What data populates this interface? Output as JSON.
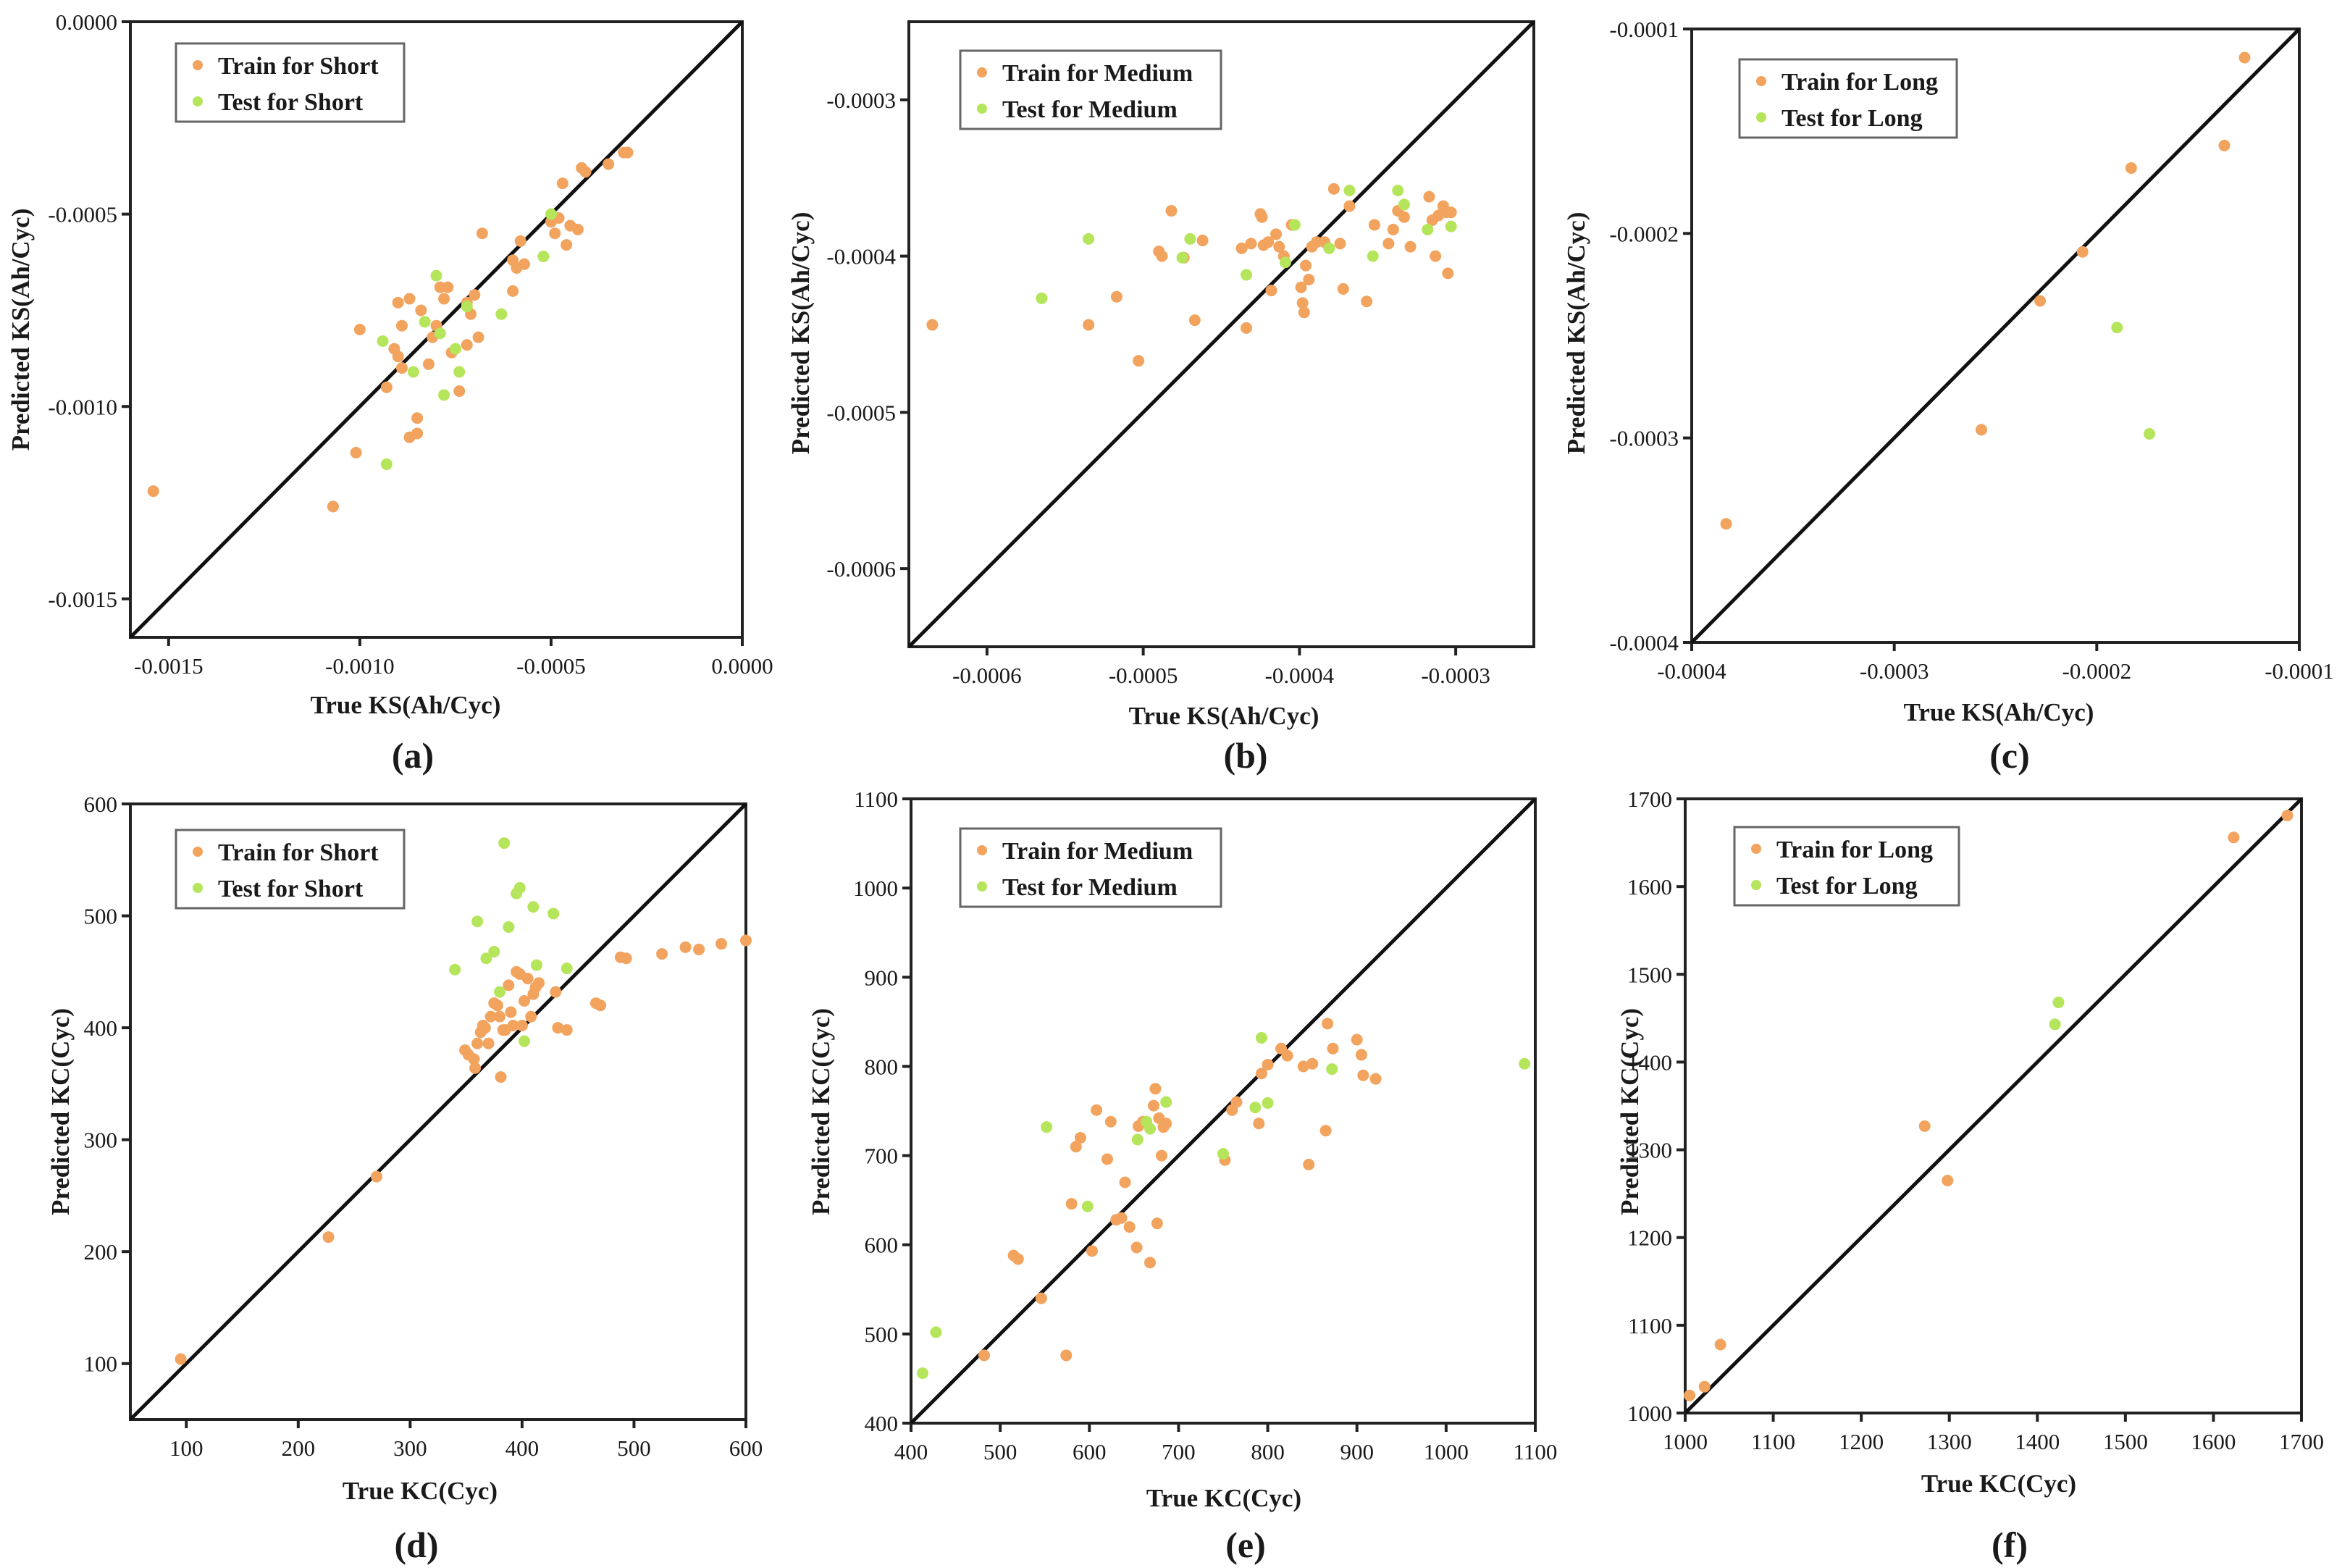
{
  "colors": {
    "train": "#f2a35e",
    "test": "#b5e55a",
    "axis": "#222222"
  },
  "chart_data": [
    {
      "id": "a",
      "type": "scatter",
      "panel_label": "(a)",
      "xlabel": "True KS(Ah/Cyc)",
      "ylabel": "Predicted KS(Ah/Cyc)",
      "xlim": [
        -0.0016,
        0.0
      ],
      "ylim": [
        -0.0016,
        0.0
      ],
      "xticks": [
        -0.0015,
        -0.001,
        -0.0005,
        0.0
      ],
      "xtick_labels": [
        "-0.0015",
        "-0.0010",
        "-0.0005",
        "0.0000"
      ],
      "yticks": [
        -0.0015,
        -0.001,
        -0.0005,
        0.0
      ],
      "ytick_labels": [
        "-0.0015",
        "-0.0010",
        "-0.0005",
        "0.0000"
      ],
      "legend": [
        "Train for Short",
        "Test for Short"
      ],
      "series": [
        {
          "name": "Train for Short",
          "color": "#f2a35e",
          "x": [
            -0.00154,
            -0.00107,
            -0.00101,
            -0.001,
            -0.00093,
            -0.00091,
            -0.0009,
            -0.0009,
            -0.00089,
            -0.00089,
            -0.00087,
            -0.00087,
            -0.00085,
            -0.00085,
            -0.00084,
            -0.00082,
            -0.00081,
            -0.0008,
            -0.00079,
            -0.00078,
            -0.00077,
            -0.00076,
            -0.00074,
            -0.00072,
            -0.00072,
            -0.00071,
            -0.0007,
            -0.00069,
            -0.00068,
            -0.0006,
            -0.0006,
            -0.00059,
            -0.00058,
            -0.00057,
            -0.0005,
            -0.00049,
            -0.00048,
            -0.00047,
            -0.00046,
            -0.00045,
            -0.00043,
            -0.00042,
            -0.00041,
            -0.00035,
            -0.00031,
            -0.0003
          ],
          "y": [
            -0.00122,
            -0.00126,
            -0.00112,
            -0.0008,
            -0.00095,
            -0.00085,
            -0.00087,
            -0.00073,
            -0.0009,
            -0.00079,
            -0.00072,
            -0.00108,
            -0.00107,
            -0.00103,
            -0.00075,
            -0.00089,
            -0.00082,
            -0.00079,
            -0.00069,
            -0.00072,
            -0.00069,
            -0.00086,
            -0.00096,
            -0.00084,
            -0.00073,
            -0.00076,
            -0.00071,
            -0.00082,
            -0.00055,
            -0.0007,
            -0.00062,
            -0.00064,
            -0.00057,
            -0.00063,
            -0.00052,
            -0.00055,
            -0.00051,
            -0.00042,
            -0.00058,
            -0.00053,
            -0.00054,
            -0.00038,
            -0.00039,
            -0.00037,
            -0.00034,
            -0.00034
          ]
        },
        {
          "name": "Test for Short",
          "color": "#b5e55a",
          "x": [
            -0.00094,
            -0.00093,
            -0.00086,
            -0.00083,
            -0.0008,
            -0.00079,
            -0.00078,
            -0.00075,
            -0.00074,
            -0.00072,
            -0.00063,
            -0.00052,
            -0.0005
          ],
          "y": [
            -0.00083,
            -0.00115,
            -0.00091,
            -0.00078,
            -0.00066,
            -0.00081,
            -0.00097,
            -0.00085,
            -0.00091,
            -0.00074,
            -0.00076,
            -0.00061,
            -0.0005
          ]
        }
      ]
    },
    {
      "id": "b",
      "type": "scatter",
      "panel_label": "(b)",
      "xlabel": "True KS(Ah/Cyc)",
      "ylabel": "Predicted KS(Ah/Cyc)",
      "xlim": [
        -0.00065,
        -0.00025
      ],
      "ylim": [
        -0.00065,
        -0.00025
      ],
      "xticks": [
        -0.0006,
        -0.0005,
        -0.0004,
        -0.0003
      ],
      "xtick_labels": [
        "-0.0006",
        "-0.0005",
        "-0.0004",
        "-0.0003"
      ],
      "yticks": [
        -0.0006,
        -0.0005,
        -0.0004,
        -0.0003
      ],
      "ytick_labels": [
        "-0.0006",
        "-0.0005",
        "-0.0004",
        "-0.0003"
      ],
      "legend": [
        "Train for Medium",
        "Test for Medium"
      ],
      "series": [
        {
          "name": "Train for Medium",
          "color": "#f2a35e",
          "x": [
            -0.000635,
            -0.000535,
            -0.000517,
            -0.000503,
            -0.00049,
            -0.000488,
            -0.000482,
            -0.000474,
            -0.000467,
            -0.000462,
            -0.000437,
            -0.000434,
            -0.000431,
            -0.000425,
            -0.000424,
            -0.000423,
            -0.00042,
            -0.000418,
            -0.000415,
            -0.000413,
            -0.00041,
            -0.000405,
            -0.000399,
            -0.000398,
            -0.000397,
            -0.000396,
            -0.000394,
            -0.000392,
            -0.000389,
            -0.000384,
            -0.000378,
            -0.000374,
            -0.000372,
            -0.000368,
            -0.000357,
            -0.000352,
            -0.000343,
            -0.00034,
            -0.000337,
            -0.000333,
            -0.000329,
            -0.000317,
            -0.000315,
            -0.000313,
            -0.000311,
            -0.000308,
            -0.000306,
            -0.000305,
            -0.000303
          ],
          "y": [
            -0.000444,
            -0.000444,
            -0.000426,
            -0.000467,
            -0.000397,
            -0.0004,
            -0.000371,
            -0.000401,
            -0.000441,
            -0.00039,
            -0.000395,
            -0.000446,
            -0.000392,
            -0.000373,
            -0.000375,
            -0.000393,
            -0.000391,
            -0.000422,
            -0.000386,
            -0.000394,
            -0.0004,
            -0.00038,
            -0.00042,
            -0.00043,
            -0.000436,
            -0.000406,
            -0.000415,
            -0.000394,
            -0.000391,
            -0.000391,
            -0.000357,
            -0.000392,
            -0.000421,
            -0.000368,
            -0.000429,
            -0.00038,
            -0.000392,
            -0.000383,
            -0.000371,
            -0.000375,
            -0.000394,
            -0.000362,
            -0.000377,
            -0.0004,
            -0.000374,
            -0.000368,
            -0.000372,
            -0.000411,
            -0.000372
          ]
        },
        {
          "name": "Test for Medium",
          "color": "#b5e55a",
          "x": [
            -0.000565,
            -0.000535,
            -0.000475,
            -0.00047,
            -0.000434,
            -0.000409,
            -0.000403,
            -0.000381,
            -0.000368,
            -0.000353,
            -0.000337,
            -0.000333,
            -0.000318,
            -0.000303
          ],
          "y": [
            -0.000427,
            -0.000389,
            -0.000401,
            -0.000389,
            -0.000412,
            -0.000404,
            -0.00038,
            -0.000395,
            -0.000358,
            -0.0004,
            -0.000358,
            -0.000367,
            -0.000383,
            -0.000381
          ]
        }
      ]
    },
    {
      "id": "c",
      "type": "scatter",
      "panel_label": "(c)",
      "xlabel": "True KS(Ah/Cyc)",
      "ylabel": "Predicted KS(Ah/Cyc)",
      "xlim": [
        -0.0004,
        -0.0001
      ],
      "ylim": [
        -0.0004,
        -0.0001
      ],
      "xticks": [
        -0.0004,
        -0.0003,
        -0.0002,
        -0.0001
      ],
      "xtick_labels": [
        "-0.0004",
        "-0.0003",
        "-0.0002",
        "-0.0001"
      ],
      "yticks": [
        -0.0004,
        -0.0003,
        -0.0002,
        -0.0001
      ],
      "ytick_labels": [
        "-0.0004",
        "-0.0003",
        "-0.0002",
        "-0.0001"
      ],
      "legend": [
        "Train for Long",
        "Test for Long"
      ],
      "series": [
        {
          "name": "Train for Long",
          "color": "#f2a35e",
          "x": [
            -0.000383,
            -0.000257,
            -0.000228,
            -0.000207,
            -0.000183,
            -0.000137,
            -0.000127
          ],
          "y": [
            -0.000342,
            -0.000296,
            -0.000233,
            -0.000209,
            -0.000168,
            -0.000157,
            -0.000114
          ]
        },
        {
          "name": "Test for Long",
          "color": "#b5e55a",
          "x": [
            -0.00019,
            -0.000174
          ],
          "y": [
            -0.000246,
            -0.000298
          ]
        }
      ]
    },
    {
      "id": "d",
      "type": "scatter",
      "panel_label": "(d)",
      "xlabel": "True KC(Cyc)",
      "ylabel": "Predicted KC(Cyc)",
      "xlim": [
        50,
        600
      ],
      "ylim": [
        50,
        600
      ],
      "xticks": [
        100,
        200,
        300,
        400,
        500,
        600
      ],
      "xtick_labels": [
        "100",
        "200",
        "300",
        "400",
        "500",
        "600"
      ],
      "yticks": [
        100,
        200,
        300,
        400,
        500,
        600
      ],
      "ytick_labels": [
        "100",
        "200",
        "300",
        "400",
        "500",
        "600"
      ],
      "legend": [
        "Train for Short",
        "Test for Short"
      ],
      "series": [
        {
          "name": "Train for Short",
          "color": "#f2a35e",
          "x": [
            95,
            227,
            270,
            349,
            352,
            357,
            358,
            360,
            363,
            365,
            367,
            370,
            372,
            375,
            378,
            380,
            381,
            383,
            385,
            388,
            390,
            392,
            395,
            398,
            400,
            402,
            405,
            408,
            410,
            412,
            415,
            430,
            432,
            440,
            466,
            470,
            488,
            493,
            525,
            546,
            558,
            578,
            600
          ],
          "y": [
            104,
            213,
            267,
            380,
            376,
            372,
            364,
            386,
            396,
            402,
            400,
            386,
            410,
            422,
            420,
            410,
            356,
            398,
            398,
            438,
            414,
            402,
            450,
            448,
            402,
            424,
            444,
            410,
            430,
            436,
            440,
            432,
            400,
            398,
            422,
            420,
            463,
            462,
            466,
            472,
            470,
            475,
            478
          ]
        },
        {
          "name": "Test for Short",
          "color": "#b5e55a",
          "x": [
            340,
            360,
            368,
            375,
            380,
            384,
            388,
            395,
            398,
            402,
            410,
            413,
            428,
            440
          ],
          "y": [
            452,
            495,
            462,
            468,
            432,
            565,
            490,
            520,
            525,
            388,
            508,
            456,
            502,
            453
          ]
        }
      ]
    },
    {
      "id": "e",
      "type": "scatter",
      "panel_label": "(e)",
      "xlabel": "True KC(Cyc)",
      "ylabel": "Predicted KC(Cyc)",
      "xlim": [
        400,
        1100
      ],
      "ylim": [
        400,
        1100
      ],
      "xticks": [
        400,
        500,
        600,
        700,
        800,
        900,
        1000,
        1100
      ],
      "xtick_labels": [
        "400",
        "500",
        "600",
        "700",
        "800",
        "900",
        "1000",
        "1100"
      ],
      "yticks": [
        400,
        500,
        600,
        700,
        800,
        900,
        1000,
        1100
      ],
      "ytick_labels": [
        "400",
        "500",
        "600",
        "700",
        "800",
        "900",
        "1000",
        "1100"
      ],
      "legend": [
        "Train for Medium",
        "Test for Medium"
      ],
      "series": [
        {
          "name": "Train for Medium",
          "color": "#f2a35e",
          "x": [
            482,
            515,
            520,
            546,
            574,
            580,
            585,
            590,
            603,
            608,
            620,
            624,
            630,
            636,
            640,
            645,
            653,
            655,
            660,
            668,
            672,
            674,
            676,
            678,
            681,
            683,
            686,
            752,
            760,
            765,
            790,
            793,
            800,
            815,
            822,
            840,
            846,
            850,
            865,
            867,
            873,
            900,
            905,
            907,
            921
          ],
          "y": [
            476,
            588,
            584,
            540,
            476,
            646,
            710,
            720,
            593,
            751,
            696,
            738,
            628,
            630,
            670,
            620,
            597,
            733,
            738,
            580,
            756,
            775,
            624,
            742,
            700,
            732,
            736,
            695,
            751,
            760,
            736,
            792,
            802,
            820,
            812,
            800,
            690,
            803,
            728,
            848,
            820,
            830,
            813,
            790,
            786
          ]
        },
        {
          "name": "Test for Medium",
          "color": "#b5e55a",
          "x": [
            413,
            428,
            552,
            598,
            654,
            664,
            668,
            686,
            750,
            786,
            793,
            800,
            872,
            1088
          ],
          "y": [
            456,
            502,
            732,
            643,
            718,
            738,
            730,
            760,
            702,
            754,
            832,
            759,
            797,
            803
          ]
        }
      ]
    },
    {
      "id": "f",
      "type": "scatter",
      "panel_label": "(f)",
      "xlabel": "True KC(Cyc)",
      "ylabel": "Predicted KC(Cyc)",
      "xlim": [
        1000,
        1700
      ],
      "ylim": [
        1000,
        1700
      ],
      "xticks": [
        1000,
        1100,
        1200,
        1300,
        1400,
        1500,
        1600,
        1700
      ],
      "xtick_labels": [
        "1000",
        "1100",
        "1200",
        "1300",
        "1400",
        "1500",
        "1600",
        "1700"
      ],
      "yticks": [
        1000,
        1100,
        1200,
        1300,
        1400,
        1500,
        1600,
        1700
      ],
      "ytick_labels": [
        "1000",
        "1100",
        "1200",
        "1300",
        "1400",
        "1500",
        "1600",
        "1700"
      ],
      "legend": [
        "Train for Long",
        "Test for Long"
      ],
      "series": [
        {
          "name": "Train for Long",
          "color": "#f2a35e",
          "x": [
            1005,
            1022,
            1040,
            1272,
            1298,
            1623,
            1684
          ],
          "y": [
            1020,
            1030,
            1078,
            1327,
            1265,
            1656,
            1681
          ]
        },
        {
          "name": "Test for Long",
          "color": "#b5e55a",
          "x": [
            1420,
            1424
          ],
          "y": [
            1443,
            1468
          ]
        }
      ]
    }
  ]
}
